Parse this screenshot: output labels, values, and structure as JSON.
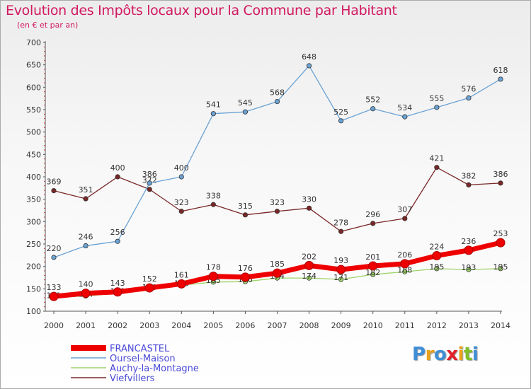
{
  "title": "Evolution des Impôts locaux pour la Commune par Habitant",
  "subtitle": "(en € et par an)",
  "logo": {
    "letters": [
      "P",
      "r",
      "o",
      "x",
      "i",
      "t",
      "i"
    ],
    "colors": [
      "#3f8fd6",
      "#e8a21a",
      "#3f8fd6",
      "#e0222b",
      "#e8a21a",
      "#7fbf2a",
      "#3f8fd6"
    ]
  },
  "chart_data": {
    "type": "line",
    "x": [
      "2000",
      "2001",
      "2002",
      "2003",
      "2004",
      "2005",
      "2006",
      "2007",
      "2008",
      "2009",
      "2010",
      "2011",
      "2012",
      "2013",
      "2014"
    ],
    "ylim": [
      100,
      700
    ],
    "yticks": [
      100,
      150,
      200,
      250,
      300,
      350,
      400,
      450,
      500,
      550,
      600,
      650,
      700
    ],
    "grid": false,
    "legend": "bottom-left",
    "series": [
      {
        "name": "Viefvillers",
        "color": "#7a2626",
        "values": [
          369,
          351,
          400,
          372,
          323,
          338,
          315,
          323,
          330,
          278,
          296,
          307,
          421,
          382,
          386
        ],
        "labels": [
          "369",
          "351",
          "400",
          "372",
          "323",
          "338",
          "315",
          "323",
          "330",
          "278",
          "296",
          "307",
          "421",
          "382",
          "386"
        ]
      },
      {
        "name": "Oursel-Maison",
        "color": "#6aa2d4",
        "values": [
          220,
          246,
          256,
          386,
          400,
          541,
          545,
          568,
          648,
          525,
          552,
          534,
          555,
          576,
          618
        ],
        "labels": [
          "220",
          "246",
          "256",
          "386",
          "400",
          "541",
          "545",
          "568",
          "648",
          "525",
          "552",
          "534",
          "555",
          "576",
          "618"
        ]
      },
      {
        "name": "Auchy-la-Montagne",
        "color": "#9ed46a",
        "values": [
          131,
          134,
          140,
          149,
          158,
          165,
          166,
          174,
          174,
          171,
          182,
          188,
          195,
          193,
          195
        ],
        "labels": [
          "131",
          "134",
          "140",
          "149",
          "158",
          "165",
          "166",
          "174",
          "174",
          "171",
          "182",
          "188",
          "195",
          "193",
          "195"
        ]
      },
      {
        "name": "FRANCASTEL",
        "color": "#ee0000",
        "values": [
          133,
          140,
          143,
          152,
          161,
          178,
          176,
          185,
          202,
          193,
          201,
          206,
          224,
          236,
          253
        ],
        "labels": [
          "133",
          "140",
          "143",
          "152",
          "161",
          "178",
          "176",
          "185",
          "202",
          "193",
          "201",
          "206",
          "224",
          "236",
          "253"
        ]
      }
    ],
    "legend_order": [
      "FRANCASTEL",
      "Oursel-Maison",
      "Auchy-la-Montagne",
      "Viefvillers"
    ]
  }
}
